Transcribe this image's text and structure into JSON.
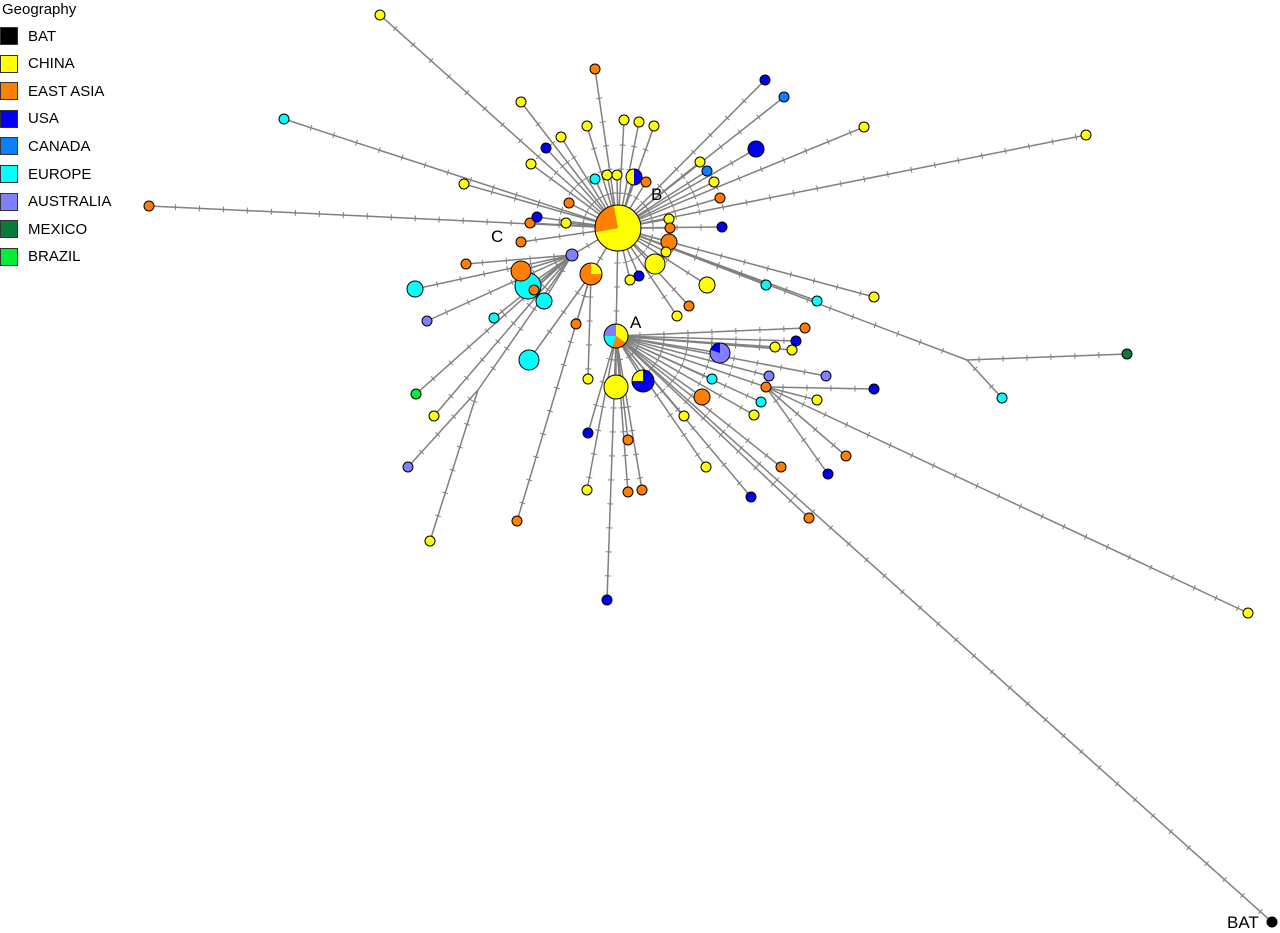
{
  "legend": {
    "title": "Geography",
    "items": [
      {
        "key": "bat",
        "label": "BAT",
        "color": "#000000"
      },
      {
        "key": "china",
        "label": "CHINA",
        "color": "#ffff00"
      },
      {
        "key": "eastasia",
        "label": "EAST ASIA",
        "color": "#ff7f00"
      },
      {
        "key": "usa",
        "label": "USA",
        "color": "#0000ee"
      },
      {
        "key": "canada",
        "label": "CANADA",
        "color": "#0a7fff"
      },
      {
        "key": "europe",
        "label": "EUROPE",
        "color": "#00ffff"
      },
      {
        "key": "australia",
        "label": "AUSTRALIA",
        "color": "#8080ff"
      },
      {
        "key": "mexico",
        "label": "MEXICO",
        "color": "#0a7a3a"
      },
      {
        "key": "brazil",
        "label": "BRAZIL",
        "color": "#00ee33"
      }
    ]
  },
  "node_labels": {
    "a": "A",
    "b": "B",
    "c": "C",
    "bat": "BAT"
  },
  "edge_color": "#808080"
}
